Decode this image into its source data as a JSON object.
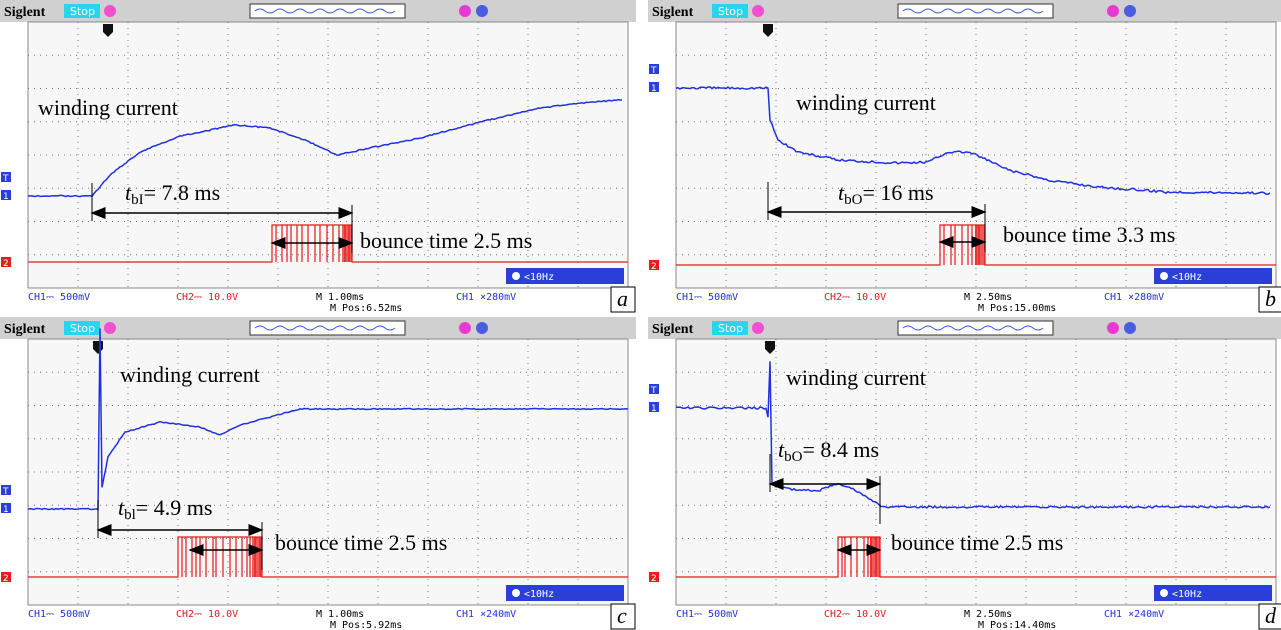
{
  "panels": [
    {
      "brand": "Siglent",
      "status": "Stop",
      "markers": [
        "T",
        "1",
        "2"
      ],
      "annotation": "winding current",
      "t_label": {
        "symbol": "t",
        "sub": "bI",
        "rest": "= 7.8 ms"
      },
      "bounce": "bounce time 2.5 ms",
      "filter": "<10Hz",
      "footer": {
        "ch1": "CH1⎓ 500mV",
        "ch2": "CH2⎓ 10.0V",
        "timebase": "M 1.00ms",
        "position": "M Pos:6.52ms",
        "trigger": "CH1 ⨯280mV"
      },
      "letter": "a"
    },
    {
      "brand": "Siglent",
      "status": "Stop",
      "markers": [
        "T",
        "1",
        "2"
      ],
      "annotation": "winding current",
      "t_label": {
        "symbol": "t",
        "sub": "bO",
        "rest": "= 16 ms"
      },
      "bounce": "bounce time 3.3 ms",
      "filter": "<10Hz",
      "footer": {
        "ch1": "CH1⎓ 500mV",
        "ch2": "CH2⎓ 10.0V",
        "timebase": "M 2.50ms",
        "position": "M Pos:15.00ms",
        "trigger": "CH1 ⨯280mV"
      },
      "letter": "b"
    },
    {
      "brand": "Siglent",
      "status": "Stop",
      "markers": [
        "T",
        "1",
        "2"
      ],
      "annotation": "winding current",
      "t_label": {
        "symbol": "t",
        "sub": "bl",
        "rest": "= 4.9 ms"
      },
      "bounce": "bounce time 2.5 ms",
      "filter": "<10Hz",
      "footer": {
        "ch1": "CH1⎓ 500mV",
        "ch2": "CH2⎓ 10.0V",
        "timebase": "M 1.00ms",
        "position": "M Pos:5.92ms",
        "trigger": "CH1 ⨯240mV"
      },
      "letter": "c"
    },
    {
      "brand": "Siglent",
      "status": "Stop",
      "markers": [
        "T",
        "1",
        "2"
      ],
      "annotation": "winding current",
      "t_label": {
        "symbol": "t",
        "sub": "bO",
        "rest": "= 8.4 ms"
      },
      "bounce": "bounce time 2.5 ms",
      "filter": "<10Hz",
      "footer": {
        "ch1": "CH1⎓ 500mV",
        "ch2": "CH2⎓ 10.0V",
        "timebase": "M 2.50ms",
        "position": "M Pos:14.40ms",
        "trigger": "CH1 ⨯240mV"
      },
      "letter": "d"
    }
  ]
}
